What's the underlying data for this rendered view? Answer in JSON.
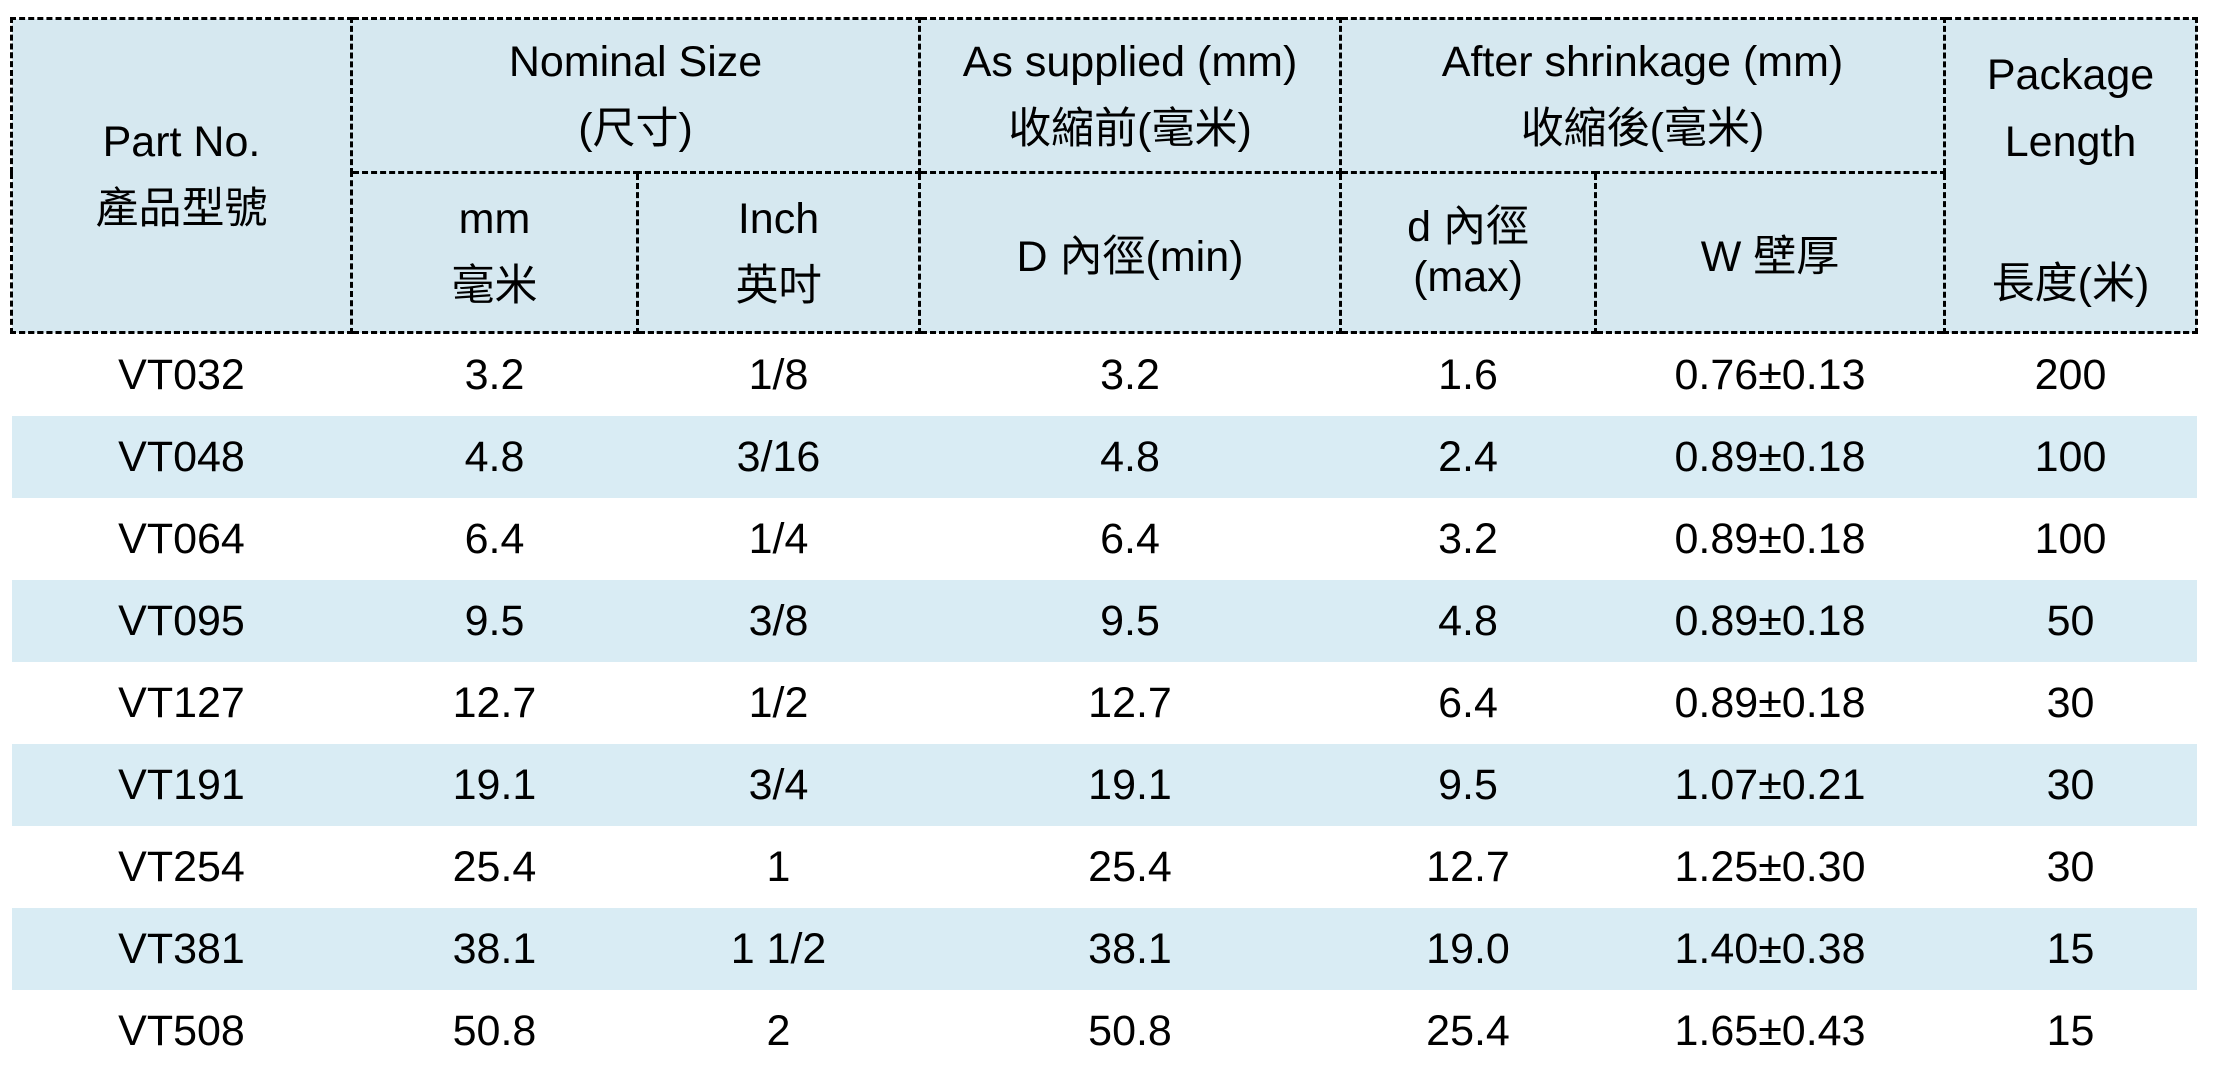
{
  "colors": {
    "header_bg": "#d6e8f0",
    "row_alt_bg": "#d9ecf4",
    "border": "#000000",
    "text": "#000000",
    "page_bg": "#ffffff"
  },
  "header": {
    "part_no": {
      "en": "Part No.",
      "zh": "產品型號"
    },
    "nominal_size": {
      "en": "Nominal Size",
      "zh": "(尺寸)"
    },
    "as_supplied": {
      "en": "As supplied (mm)",
      "zh": "收縮前(毫米)"
    },
    "after_shrinkage": {
      "en": "After shrinkage (mm)",
      "zh": "收縮後(毫米)"
    },
    "package_length": {
      "en_line1": "Package",
      "en_line2": "Length",
      "zh": "長度(米)"
    },
    "sub": {
      "mm": {
        "en": "mm",
        "zh": "毫米"
      },
      "inch": {
        "en": "Inch",
        "zh": "英吋"
      },
      "d_min": "D 內徑(min)",
      "d_max_line1": "d 內徑",
      "d_max_line2": "(max)",
      "w": "W 壁厚"
    }
  },
  "columns_order": [
    "part",
    "mm",
    "inch",
    "d_min",
    "d_max",
    "w",
    "length"
  ],
  "rows": [
    {
      "part": "VT032",
      "mm": "3.2",
      "inch": "1/8",
      "d_min": "3.2",
      "d_max": "1.6",
      "w": "0.76±0.13",
      "length": "200"
    },
    {
      "part": "VT048",
      "mm": "4.8",
      "inch": "3/16",
      "d_min": "4.8",
      "d_max": "2.4",
      "w": "0.89±0.18",
      "length": "100"
    },
    {
      "part": "VT064",
      "mm": "6.4",
      "inch": "1/4",
      "d_min": "6.4",
      "d_max": "3.2",
      "w": "0.89±0.18",
      "length": "100"
    },
    {
      "part": "VT095",
      "mm": "9.5",
      "inch": "3/8",
      "d_min": "9.5",
      "d_max": "4.8",
      "w": "0.89±0.18",
      "length": "50"
    },
    {
      "part": "VT127",
      "mm": "12.7",
      "inch": "1/2",
      "d_min": "12.7",
      "d_max": "6.4",
      "w": "0.89±0.18",
      "length": "30"
    },
    {
      "part": "VT191",
      "mm": "19.1",
      "inch": "3/4",
      "d_min": "19.1",
      "d_max": "9.5",
      "w": "1.07±0.21",
      "length": "30"
    },
    {
      "part": "VT254",
      "mm": "25.4",
      "inch": "1",
      "d_min": "25.4",
      "d_max": "12.7",
      "w": "1.25±0.30",
      "length": "30"
    },
    {
      "part": "VT381",
      "mm": "38.1",
      "inch": "1 1/2",
      "d_min": "38.1",
      "d_max": "19.0",
      "w": "1.40±0.38",
      "length": "15"
    },
    {
      "part": "VT508",
      "mm": "50.8",
      "inch": "2",
      "d_min": "50.8",
      "d_max": "25.4",
      "w": "1.65±0.43",
      "length": "15"
    }
  ]
}
